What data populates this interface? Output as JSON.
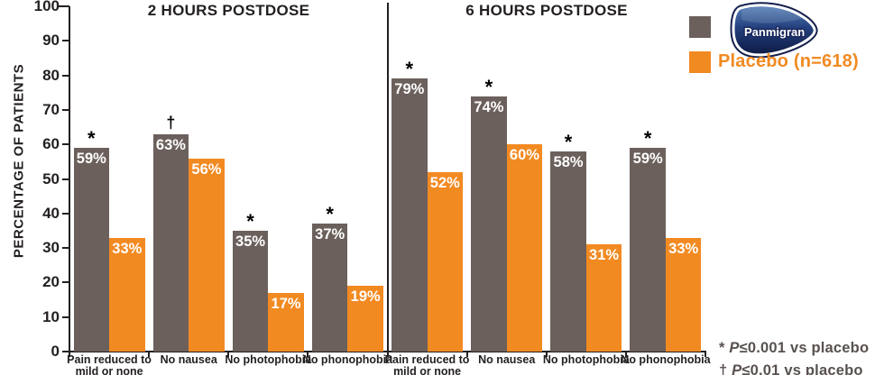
{
  "chart_data": {
    "type": "bar",
    "ylabel": "PERCENTAGE OF PATIENTS",
    "ylim": [
      0,
      100
    ],
    "yticks": [
      0,
      10,
      20,
      30,
      40,
      50,
      60,
      70,
      80,
      90,
      100
    ],
    "grid": false,
    "legend_position": "top-right",
    "value_suffix": "%",
    "categories": [
      "Pain reduced to\nmild or none",
      "No nausea",
      "No photophobia",
      "No phonophobia"
    ],
    "sections": [
      {
        "title": "2 HOURS POSTDOSE",
        "series": [
          {
            "name": "Panmigran",
            "values": [
              59,
              63,
              35,
              37
            ],
            "markers": [
              "*",
              "†",
              "*",
              "*"
            ]
          },
          {
            "name": "Placebo",
            "values": [
              33,
              56,
              17,
              19
            ],
            "markers": [
              "",
              "",
              "",
              ""
            ]
          }
        ]
      },
      {
        "title": "6 HOURS POSTDOSE",
        "series": [
          {
            "name": "Panmigran",
            "values": [
              79,
              74,
              58,
              59
            ],
            "markers": [
              "*",
              "*",
              "*",
              "*"
            ]
          },
          {
            "name": "Placebo",
            "values": [
              52,
              60,
              31,
              33
            ],
            "markers": [
              "",
              "",
              "",
              ""
            ]
          }
        ]
      }
    ]
  },
  "legend": {
    "panmigran_logo_text": "Panmigran",
    "placebo_label": "Placebo (n=618)"
  },
  "footnotes": [
    {
      "marker": "* ",
      "p": "P",
      "rest": "≤0.001 vs placebo"
    },
    {
      "marker": "† ",
      "p": "P",
      "rest": "≤0.01 vs placebo"
    }
  ],
  "colors": {
    "panmigran_bar": "#6b605c",
    "placebo_bar": "#f28a22",
    "axis": "#231f20",
    "bar_label": "#ffffff",
    "placebo_text": "#f28a22",
    "footnote_text": "#58514e",
    "logo_navy": "#15204d",
    "logo_blue": "#5580b8"
  }
}
